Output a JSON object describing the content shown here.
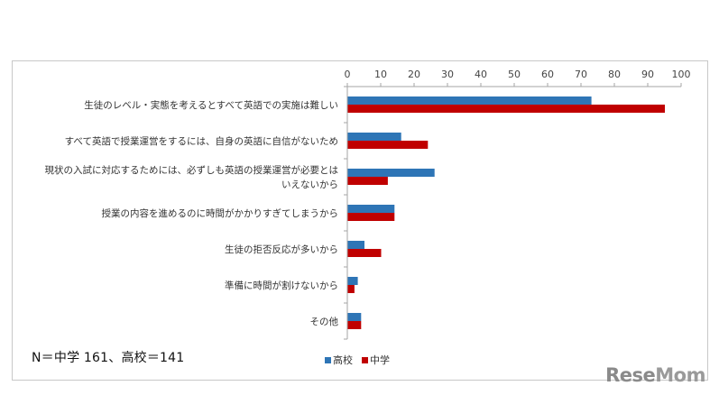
{
  "chart_data": {
    "type": "bar",
    "orientation": "horizontal",
    "categories": [
      [
        "生徒のレベル・実態を考えるとすべて英語での実施は難しい"
      ],
      [
        "すべて英語で授業運営をするには、自身の英語に自信がないため"
      ],
      [
        "現状の入試に対応するためには、必ずしも英語の授業運営が必要とは",
        "いえないから"
      ],
      [
        "授業の内容を進めるのに時間がかかりすぎてしまうから"
      ],
      [
        "生徒の拒否反応が多いから"
      ],
      [
        "準備に時間が割けないから"
      ],
      [
        "その他"
      ]
    ],
    "series": [
      {
        "name": "高校",
        "color": "#2e75b6",
        "values": [
          73,
          16,
          26,
          14,
          5,
          3,
          4
        ]
      },
      {
        "name": "中学",
        "color": "#c00000",
        "values": [
          95,
          24,
          12,
          14,
          10,
          2,
          4
        ]
      }
    ],
    "xlim": [
      0,
      100
    ],
    "xticks": [
      0,
      10,
      20,
      30,
      40,
      50,
      60,
      70,
      80,
      90,
      100
    ],
    "axis_position": "top",
    "grid": false,
    "legend_position": "bottom"
  },
  "footnote": "N＝中学 161、高校＝141",
  "logo": {
    "part1": "Rese",
    "part2": "Mom"
  }
}
